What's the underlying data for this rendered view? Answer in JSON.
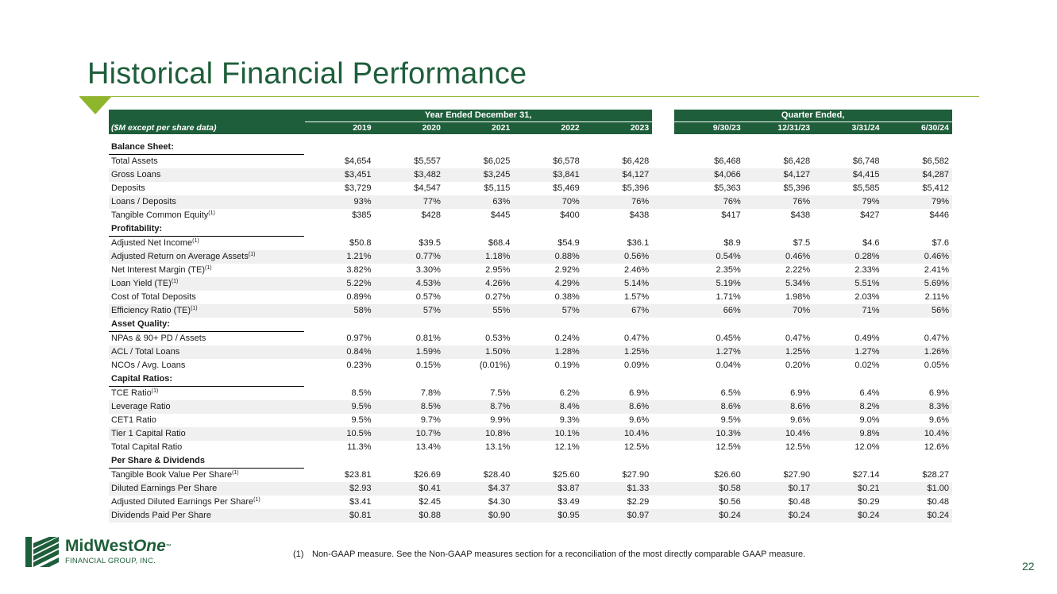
{
  "title": "Historical Financial Performance",
  "brand_color": "#1e5e3a",
  "accent_color": "#8fb52c",
  "table": {
    "group_headers": {
      "years": "Year Ended December 31,",
      "quarters": "Quarter Ended,"
    },
    "label_header": "($M except per share data)",
    "year_columns": [
      "2019",
      "2020",
      "2021",
      "2022",
      "2023"
    ],
    "quarter_columns": [
      "9/30/23",
      "12/31/23",
      "3/31/24",
      "6/30/24"
    ],
    "sections": [
      {
        "title": "Balance Sheet:",
        "rows": [
          {
            "label": "Total Assets",
            "note": "",
            "values": [
              "$4,654",
              "$5,557",
              "$6,025",
              "$6,578",
              "$6,428",
              "$6,468",
              "$6,428",
              "$6,748",
              "$6,582"
            ]
          },
          {
            "label": "Gross Loans",
            "note": "",
            "values": [
              "$3,451",
              "$3,482",
              "$3,245",
              "$3,841",
              "$4,127",
              "$4,066",
              "$4,127",
              "$4,415",
              "$4,287"
            ]
          },
          {
            "label": "Deposits",
            "note": "",
            "values": [
              "$3,729",
              "$4,547",
              "$5,115",
              "$5,469",
              "$5,396",
              "$5,363",
              "$5,396",
              "$5,585",
              "$5,412"
            ]
          },
          {
            "label": "Loans / Deposits",
            "note": "",
            "values": [
              "93%",
              "77%",
              "63%",
              "70%",
              "76%",
              "76%",
              "76%",
              "79%",
              "79%"
            ]
          },
          {
            "label": "Tangible Common Equity",
            "note": "(1)",
            "values": [
              "$385",
              "$428",
              "$445",
              "$400",
              "$438",
              "$417",
              "$438",
              "$427",
              "$446"
            ]
          }
        ]
      },
      {
        "title": "Profitability:",
        "rows": [
          {
            "label": "Adjusted Net Income",
            "note": "(1)",
            "values": [
              "$50.8",
              "$39.5",
              "$68.4",
              "$54.9",
              "$36.1",
              "$8.9",
              "$7.5",
              "$4.6",
              "$7.6"
            ]
          },
          {
            "label": "Adjusted Return on Average Assets",
            "note": "(1)",
            "values": [
              "1.21%",
              "0.77%",
              "1.18%",
              "0.88%",
              "0.56%",
              "0.54%",
              "0.46%",
              "0.28%",
              "0.46%"
            ]
          },
          {
            "label": "Net Interest Margin (TE)",
            "note": "(1)",
            "values": [
              "3.82%",
              "3.30%",
              "2.95%",
              "2.92%",
              "2.46%",
              "2.35%",
              "2.22%",
              "2.33%",
              "2.41%"
            ]
          },
          {
            "label": "Loan Yield (TE)",
            "note": "(1)",
            "values": [
              "5.22%",
              "4.53%",
              "4.26%",
              "4.29%",
              "5.14%",
              "5.19%",
              "5.34%",
              "5.51%",
              "5.69%"
            ]
          },
          {
            "label": "Cost of Total Deposits",
            "note": "",
            "values": [
              "0.89%",
              "0.57%",
              "0.27%",
              "0.38%",
              "1.57%",
              "1.71%",
              "1.98%",
              "2.03%",
              "2.11%"
            ]
          },
          {
            "label": "Efficiency Ratio (TE)",
            "note": "(1)",
            "values": [
              "58%",
              "57%",
              "55%",
              "57%",
              "67%",
              "66%",
              "70%",
              "71%",
              "56%"
            ]
          }
        ]
      },
      {
        "title": "Asset Quality:",
        "rows": [
          {
            "label": "NPAs & 90+ PD / Assets",
            "note": "",
            "values": [
              "0.97%",
              "0.81%",
              "0.53%",
              "0.24%",
              "0.47%",
              "0.45%",
              "0.47%",
              "0.49%",
              "0.47%"
            ]
          },
          {
            "label": "ACL / Total Loans",
            "note": "",
            "values": [
              "0.84%",
              "1.59%",
              "1.50%",
              "1.28%",
              "1.25%",
              "1.27%",
              "1.25%",
              "1.27%",
              "1.26%"
            ]
          },
          {
            "label": "NCOs / Avg. Loans",
            "note": "",
            "values": [
              "0.23%",
              "0.15%",
              "(0.01%)",
              "0.19%",
              "0.09%",
              "0.04%",
              "0.20%",
              "0.02%",
              "0.05%"
            ]
          }
        ]
      },
      {
        "title": "Capital Ratios:",
        "rows": [
          {
            "label": "TCE Ratio",
            "note": "(1)",
            "values": [
              "8.5%",
              "7.8%",
              "7.5%",
              "6.2%",
              "6.9%",
              "6.5%",
              "6.9%",
              "6.4%",
              "6.9%"
            ]
          },
          {
            "label": "Leverage Ratio",
            "note": "",
            "values": [
              "9.5%",
              "8.5%",
              "8.7%",
              "8.4%",
              "8.6%",
              "8.6%",
              "8.6%",
              "8.2%",
              "8.3%"
            ]
          },
          {
            "label": "CET1 Ratio",
            "note": "",
            "values": [
              "9.5%",
              "9.7%",
              "9.9%",
              "9.3%",
              "9.6%",
              "9.5%",
              "9.6%",
              "9.0%",
              "9.6%"
            ]
          },
          {
            "label": "Tier 1 Capital Ratio",
            "note": "",
            "values": [
              "10.5%",
              "10.7%",
              "10.8%",
              "10.1%",
              "10.4%",
              "10.3%",
              "10.4%",
              "9.8%",
              "10.4%"
            ]
          },
          {
            "label": "Total Capital Ratio",
            "note": "",
            "values": [
              "11.3%",
              "13.4%",
              "13.1%",
              "12.1%",
              "12.5%",
              "12.5%",
              "12.5%",
              "12.0%",
              "12.6%"
            ]
          }
        ]
      },
      {
        "title": "Per Share & Dividends",
        "rows": [
          {
            "label": "Tangible Book Value Per Share",
            "note": "(1)",
            "values": [
              "$23.81",
              "$26.69",
              "$28.40",
              "$25.60",
              "$27.90",
              "$26.60",
              "$27.90",
              "$27.14",
              "$28.27"
            ]
          },
          {
            "label": "Diluted Earnings Per Share",
            "note": "",
            "values": [
              "$2.93",
              "$0.41",
              "$4.37",
              "$3.87",
              "$1.33",
              "$0.58",
              "$0.17",
              "$0.21",
              "$1.00"
            ]
          },
          {
            "label": "Adjusted Diluted Earnings Per Share",
            "note": "(1)",
            "values": [
              "$3.41",
              "$2.45",
              "$4.30",
              "$3.49",
              "$2.29",
              "$0.56",
              "$0.48",
              "$0.29",
              "$0.48"
            ]
          },
          {
            "label": "Dividends Paid Per Share",
            "note": "",
            "values": [
              "$0.81",
              "$0.88",
              "$0.90",
              "$0.95",
              "$0.97",
              "$0.24",
              "$0.24",
              "$0.24",
              "$0.24"
            ]
          }
        ]
      }
    ]
  },
  "logo": {
    "name_main": "MidWest",
    "name_emphasis": "One",
    "trademark": "™",
    "subtitle": "FINANCIAL GROUP, INC."
  },
  "footnote": {
    "marker": "(1)",
    "text": "Non-GAAP measure. See the Non-GAAP measures section for a reconciliation of the most directly comparable GAAP measure."
  },
  "page_number": "22"
}
